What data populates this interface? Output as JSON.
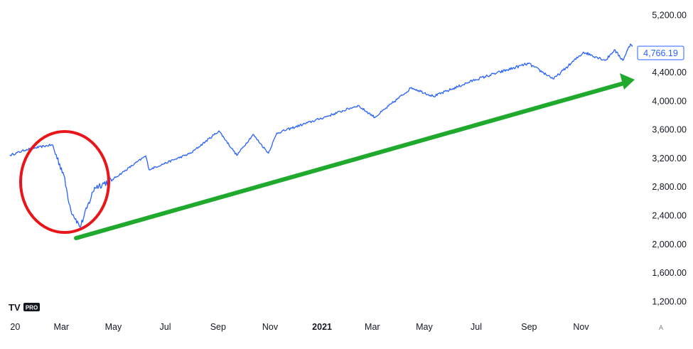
{
  "chart_data": {
    "type": "line",
    "series": [
      {
        "values": [
          [
            "2020-01-01",
            3240
          ],
          [
            "2020-01-20",
            3320
          ],
          [
            "2020-02-19",
            3386
          ],
          [
            "2020-03-03",
            3000
          ],
          [
            "2020-03-12",
            2480
          ],
          [
            "2020-03-23",
            2237
          ],
          [
            "2020-04-09",
            2790
          ],
          [
            "2020-04-30",
            2900
          ],
          [
            "2020-06-08",
            3230
          ],
          [
            "2020-06-12",
            3040
          ],
          [
            "2020-07-31",
            3270
          ],
          [
            "2020-09-02",
            3580
          ],
          [
            "2020-09-23",
            3240
          ],
          [
            "2020-10-12",
            3530
          ],
          [
            "2020-10-30",
            3270
          ],
          [
            "2020-11-09",
            3550
          ],
          [
            "2020-12-31",
            3756
          ],
          [
            "2021-02-12",
            3935
          ],
          [
            "2021-03-04",
            3770
          ],
          [
            "2021-04-16",
            4185
          ],
          [
            "2021-05-12",
            4063
          ],
          [
            "2021-06-30",
            4297
          ],
          [
            "2021-08-31",
            4522
          ],
          [
            "2021-09-30",
            4307
          ],
          [
            "2021-11-04",
            4680
          ],
          [
            "2021-11-30",
            4567
          ],
          [
            "2021-12-10",
            4712
          ],
          [
            "2021-12-20",
            4568
          ],
          [
            "2021-12-29",
            4793
          ],
          [
            "2021-12-31",
            4766.19
          ]
        ]
      }
    ],
    "y_ticks": [
      "5,200.00",
      "4,400.00",
      "4,000.00",
      "3,600.00",
      "3,200.00",
      "2,800.00",
      "2,400.00",
      "2,000.00",
      "1,600.00",
      "1,200.00"
    ],
    "x_ticks": [
      "20",
      "Mar",
      "May",
      "Jul",
      "Sep",
      "Nov",
      "2021",
      "Mar",
      "May",
      "Jul",
      "Sep",
      "Nov"
    ],
    "ylim": [
      940,
      5330
    ],
    "xlim": [
      "2019-12-20",
      "2022-01-03"
    ],
    "last_value_label": "4,766.19",
    "logo_text": "PRO",
    "scale_button_label": "A",
    "colors": {
      "line": "#2962ff",
      "circle_annotation": "#e8161b",
      "arrow_annotation": "#1faa2e",
      "axis_text": "#131722"
    }
  }
}
